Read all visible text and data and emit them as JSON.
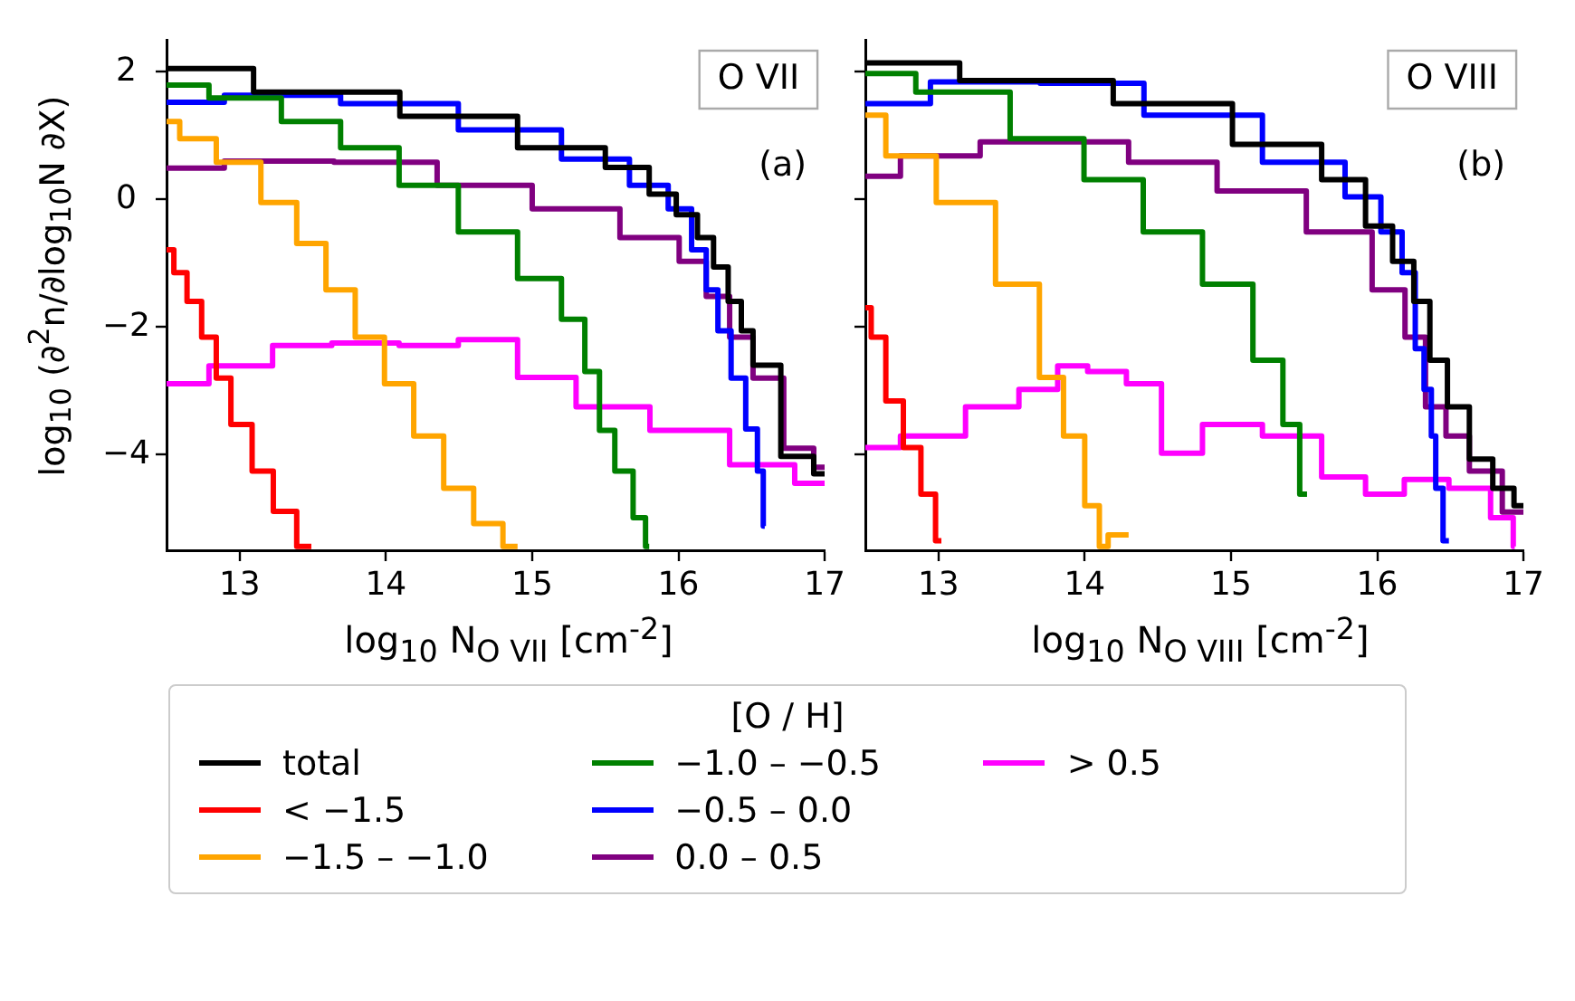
{
  "chart_data": [
    {
      "type": "step",
      "xlabel": "log$_{10}$ N$_{O VII}$ [cm$^{-2}$]",
      "ylabel": "log$_{10}$ (∂$^{2}$n/∂log$_{10}$N ∂X)",
      "legend_title": "[O / H]",
      "legend": "bottom",
      "grid": false,
      "annotations": [
        "O VII",
        "(a)"
      ],
      "xlim": [
        12.5,
        17
      ],
      "xticks": [
        13,
        14,
        15,
        16,
        17
      ],
      "ylim": [
        -5.5,
        2.5
      ],
      "yticks": [
        2,
        0,
        {
          "value": -2,
          "label": "−2"
        },
        {
          "value": -4,
          "label": "−4"
        }
      ],
      "series": [
        {
          "name": "total",
          "color": "#000000",
          "x": [
            12.5,
            13.69,
            14.5,
            15.3,
            15.7,
            15.9,
            16.07,
            16.19,
            16.29,
            16.39,
            16.47,
            16.55,
            16.85,
            17
          ],
          "values": [
            2.05,
            1.68,
            1.3,
            0.81,
            0.5,
            0.08,
            -0.24,
            -0.6,
            -1.06,
            -1.6,
            -2.06,
            -2.6,
            -4.03,
            -4.3
          ]
        },
        {
          "name": "< −1.5",
          "color": "#ff0000",
          "x": [
            12.5,
            12.6,
            12.68,
            12.8,
            12.88,
            13.0,
            13.17,
            13.29,
            13.49
          ],
          "values": [
            -0.79,
            -1.15,
            -1.6,
            -2.16,
            -2.8,
            -3.53,
            -4.26,
            -4.89,
            -5.44
          ]
        },
        {
          "name": "−1.5 – −1.0",
          "color": "#ffa500",
          "x": [
            12.5,
            12.68,
            13.0,
            13.29,
            13.49,
            13.69,
            13.89,
            14.09,
            14.29,
            14.5,
            14.7,
            14.9
          ],
          "values": [
            1.22,
            0.95,
            0.58,
            -0.05,
            -0.69,
            -1.42,
            -2.16,
            -2.89,
            -3.71,
            -4.53,
            -5.08,
            -5.44
          ]
        },
        {
          "name": "−1.0 – −0.5",
          "color": "#008000",
          "x": [
            12.5,
            13.08,
            13.49,
            13.89,
            14.29,
            14.7,
            15.1,
            15.3,
            15.42,
            15.5,
            15.63,
            15.75,
            15.8
          ],
          "values": [
            1.79,
            1.59,
            1.22,
            0.81,
            0.22,
            -0.51,
            -1.24,
            -1.88,
            -2.7,
            -3.62,
            -4.26,
            -4.99,
            -5.44
          ]
        },
        {
          "name": "−0.5 – 0.0",
          "color": "#0000ff",
          "x": [
            12.5,
            13.29,
            14.09,
            14.9,
            15.5,
            15.83,
            16.03,
            16.15,
            16.23,
            16.31,
            16.41,
            16.51,
            16.57,
            16.59
          ],
          "values": [
            1.52,
            1.63,
            1.5,
            1.09,
            0.63,
            0.22,
            -0.15,
            -0.79,
            -1.42,
            -2.06,
            -2.8,
            -3.6,
            -4.26,
            -5.12
          ]
        },
        {
          "name": "0.0 – 0.5",
          "color": "#800080",
          "x": [
            12.5,
            13.29,
            14.0,
            14.7,
            15.3,
            15.9,
            16.11,
            16.27,
            16.43,
            16.59,
            16.85,
            17
          ],
          "values": [
            0.49,
            0.6,
            0.58,
            0.22,
            -0.15,
            -0.6,
            -0.97,
            -1.52,
            -2.16,
            -2.8,
            -3.9,
            -4.2
          ]
        },
        {
          "name": "> 0.5",
          "color": "#ff00ff",
          "x": [
            12.5,
            13.08,
            13.37,
            13.89,
            14.29,
            14.7,
            15.1,
            15.5,
            16.11,
            16.59,
            17
          ],
          "values": [
            -2.89,
            -2.61,
            -2.29,
            -2.25,
            -2.29,
            -2.2,
            -2.79,
            -3.25,
            -3.62,
            -4.16,
            -4.45
          ]
        }
      ]
    },
    {
      "type": "step",
      "xlabel": "log$_{10}$ N$_{O VIII}$ [cm$^{-2}$]",
      "grid": false,
      "tick_labels": "x",
      "annotations": [
        "O VIII",
        "(b)"
      ],
      "xlim": [
        12.5,
        17
      ],
      "xticks": [
        13,
        14,
        15,
        16,
        17
      ],
      "ylim": [
        -5.5,
        2.5
      ],
      "yticks": [
        {
          "value": 2,
          "label": null
        },
        {
          "value": 0,
          "label": null
        },
        {
          "value": -2,
          "label": null
        },
        {
          "value": -4,
          "label": null
        }
      ],
      "series": [
        {
          "color": "#000000",
          "x": [
            12.5,
            13.79,
            14.6,
            15.42,
            15.82,
            16.02,
            16.19,
            16.31,
            16.41,
            16.55,
            16.71,
            16.87,
            17
          ],
          "values": [
            2.14,
            1.86,
            1.5,
            0.86,
            0.31,
            -0.42,
            -0.97,
            -1.6,
            -2.52,
            -3.25,
            -4.07,
            -4.53,
            -4.8
          ]
        },
        {
          "color": "#ff0000",
          "x": [
            12.5,
            12.58,
            12.7,
            12.82,
            12.94,
            13.02
          ],
          "values": [
            -1.7,
            -2.16,
            -3.16,
            -3.89,
            -4.62,
            -5.35
          ]
        },
        {
          "color": "#ffa500",
          "x": [
            12.5,
            12.78,
            13.19,
            13.59,
            13.79,
            13.92,
            14.08,
            14.12,
            14.2,
            14.3
          ],
          "values": [
            1.32,
            0.68,
            -0.05,
            -1.33,
            -2.79,
            -3.71,
            -4.8,
            -5.44,
            -5.26,
            -5.26
          ]
        },
        {
          "color": "#008000",
          "x": [
            12.5,
            13.19,
            13.79,
            14.2,
            14.6,
            15.01,
            15.29,
            15.42,
            15.52
          ],
          "values": [
            1.97,
            1.68,
            0.95,
            0.31,
            -0.51,
            -1.33,
            -2.52,
            -3.53,
            -4.62
          ]
        },
        {
          "color": "#0000ff",
          "x": [
            12.5,
            13.39,
            14.0,
            14.81,
            15.62,
            15.94,
            16.11,
            16.23,
            16.29,
            16.35,
            16.39,
            16.41,
            16.49
          ],
          "values": [
            1.5,
            1.84,
            1.82,
            1.32,
            0.58,
            0.04,
            -0.51,
            -1.15,
            -2.34,
            -2.98,
            -3.71,
            -4.53,
            -5.35
          ]
        },
        {
          "color": "#800080",
          "x": [
            12.5,
            12.98,
            13.59,
            14.0,
            14.6,
            15.21,
            15.82,
            16.11,
            16.27,
            16.39,
            16.55,
            16.71,
            17
          ],
          "values": [
            0.36,
            0.68,
            0.9,
            0.9,
            0.58,
            0.13,
            -0.51,
            -1.42,
            -2.16,
            -3.25,
            -3.71,
            -4.26,
            -4.9
          ]
        },
        {
          "color": "#ff00ff",
          "x": [
            12.5,
            12.98,
            13.39,
            13.71,
            13.92,
            14.12,
            14.45,
            14.6,
            15.01,
            15.42,
            15.82,
            16.02,
            16.35,
            16.63,
            16.92,
            16.94
          ],
          "values": [
            -3.89,
            -3.71,
            -3.25,
            -2.98,
            -2.61,
            -2.7,
            -2.89,
            -3.98,
            -3.53,
            -3.71,
            -4.35,
            -4.62,
            -4.39,
            -4.53,
            -4.99,
            -5.44
          ]
        }
      ]
    }
  ]
}
